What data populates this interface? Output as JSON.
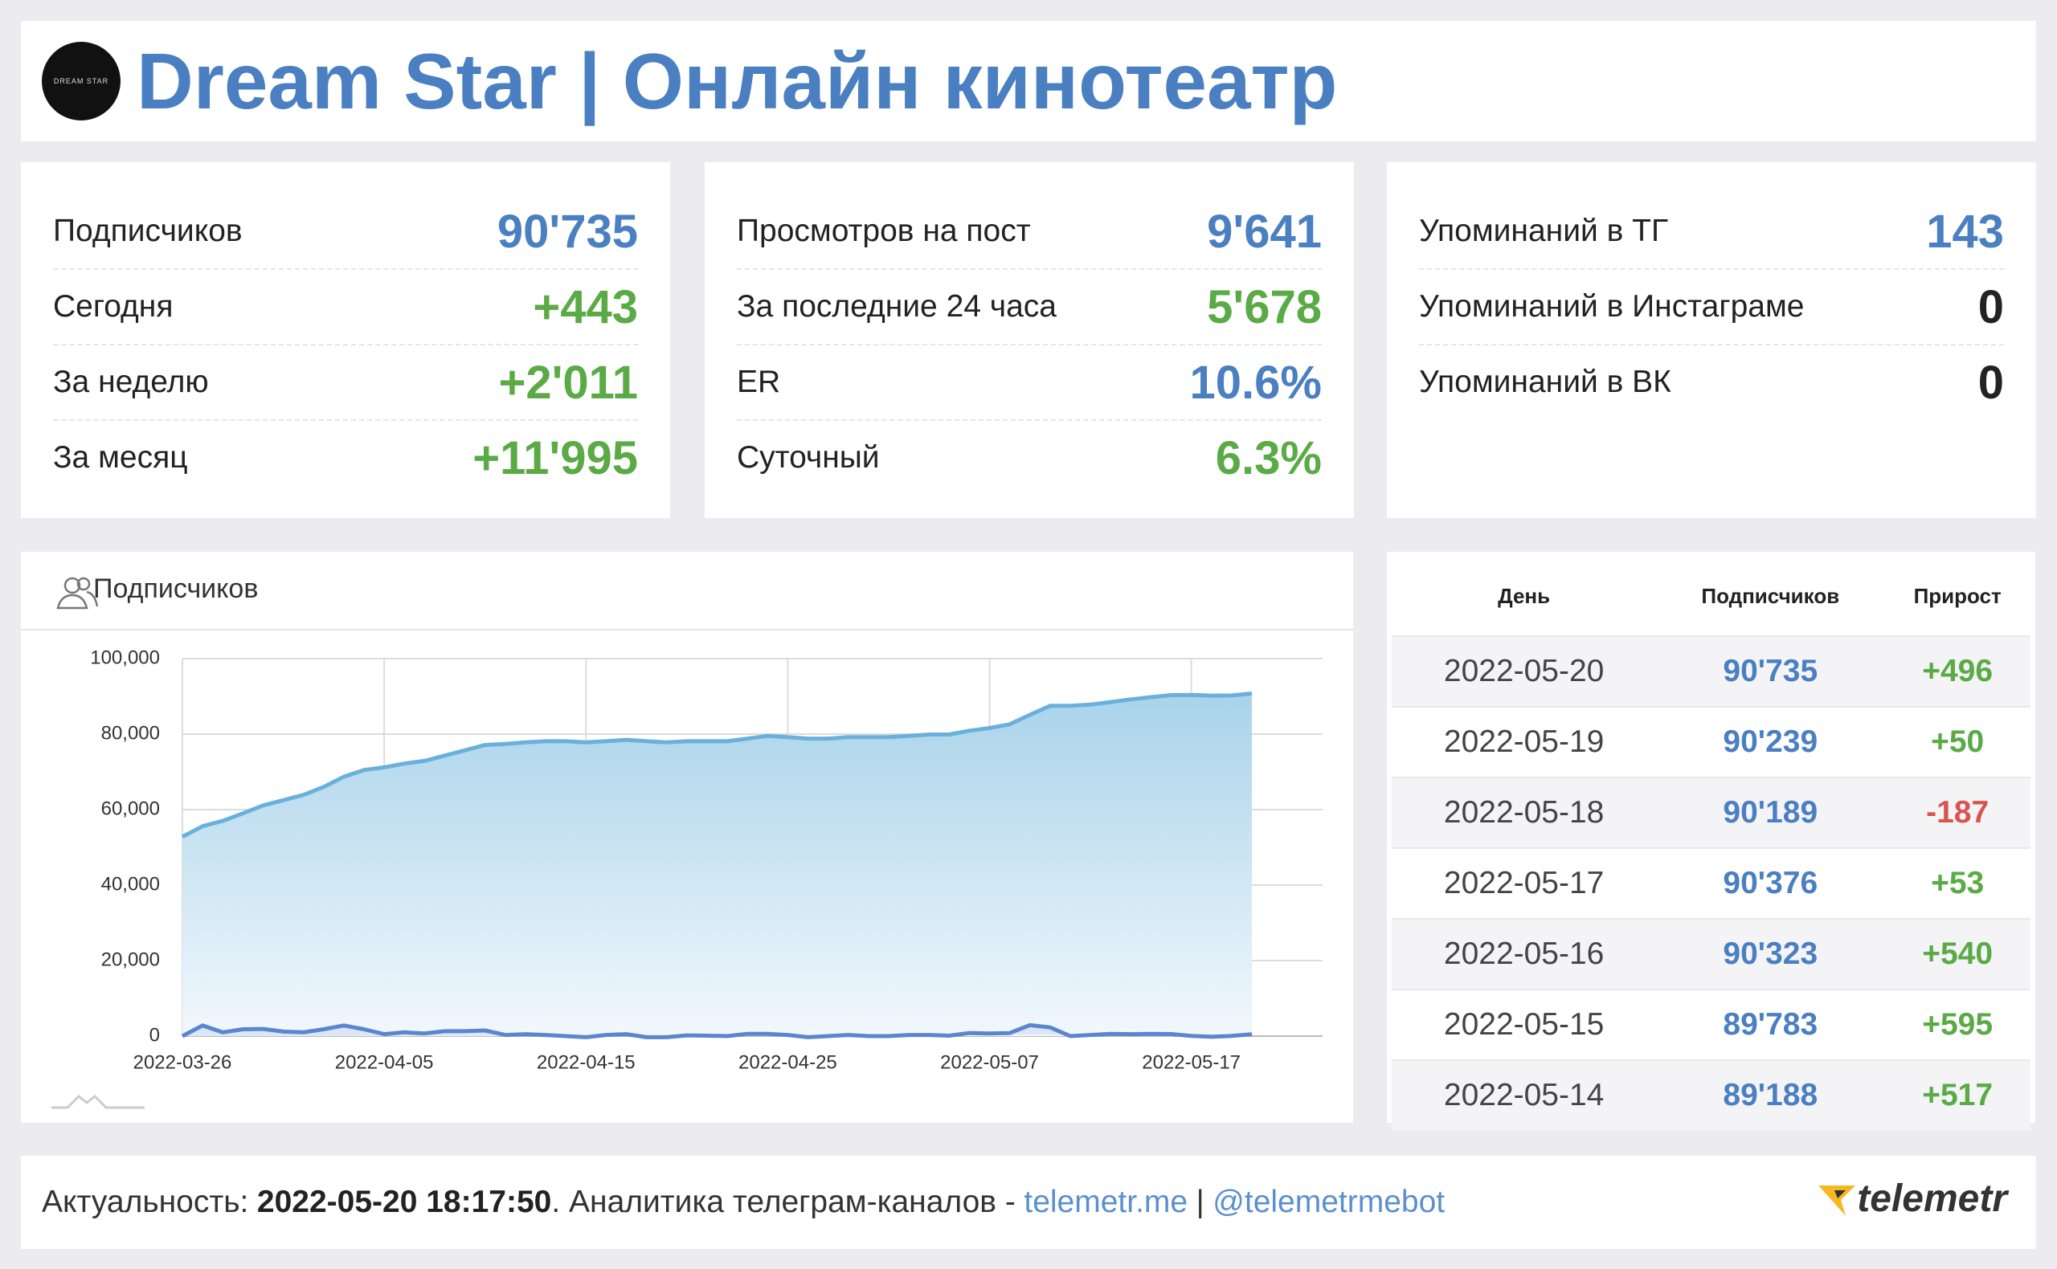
{
  "header": {
    "logo_text": "DREAM STAR",
    "title": "Dream Star | Онлайн кинотеатр"
  },
  "stats": [
    {
      "rows": [
        {
          "label": "Подписчиков",
          "value": "90'735"
        },
        {
          "label": "Сегодня",
          "value": "+443"
        },
        {
          "label": "За неделю",
          "value": "+2'011"
        },
        {
          "label": "За месяц",
          "value": "+11'995"
        }
      ]
    },
    {
      "rows": [
        {
          "label": "Просмотров на пост",
          "value": "9'641"
        },
        {
          "label": "За последние 24 часа",
          "value": "5'678"
        },
        {
          "label": "ER",
          "value": "10.6%"
        },
        {
          "label": "Суточный",
          "value": "6.3%"
        }
      ]
    },
    {
      "rows": [
        {
          "label": "Упоминаний в ТГ",
          "value": "143"
        },
        {
          "label": "Упоминаний в Инстаграме",
          "value": "0"
        },
        {
          "label": "Упоминаний в ВК",
          "value": "0"
        }
      ]
    }
  ],
  "chart_data": {
    "type": "line",
    "title": "Подписчиков",
    "categories": [
      "2022-03-26",
      null,
      null,
      null,
      null,
      null,
      null,
      null,
      null,
      null,
      "2022-04-05",
      null,
      null,
      null,
      null,
      null,
      null,
      null,
      null,
      null,
      "2022-04-15",
      null,
      null,
      null,
      null,
      null,
      null,
      null,
      null,
      null,
      "2022-04-25",
      null,
      null,
      null,
      null,
      null,
      null,
      null,
      null,
      null,
      "2022-05-07",
      null,
      null,
      null,
      null,
      null,
      null,
      null,
      null,
      null,
      "2022-05-17",
      null,
      null,
      null
    ],
    "series": [
      {
        "color": "#6ab0dc",
        "area": true,
        "values": [
          52800,
          55600,
          57000,
          59000,
          61100,
          62500,
          63900,
          66000,
          68700,
          70500,
          71200,
          72200,
          72900,
          74300,
          75700,
          77100,
          77400,
          77800,
          78100,
          78100,
          77800,
          78100,
          78500,
          78100,
          77800,
          78100,
          78100,
          78100,
          78800,
          79500,
          79200,
          78800,
          78800,
          79200,
          79200,
          79200,
          79500,
          79900,
          79900,
          80900,
          81600,
          82600,
          85100,
          87500,
          87500,
          87800,
          88500,
          89188,
          89783,
          90323,
          90376,
          90189,
          90239,
          90735
        ]
      },
      {
        "color": "#5b86cf",
        "area": false,
        "values": [
          0,
          2800,
          1000,
          1800,
          1900,
          1200,
          1000,
          1800,
          2800,
          1800,
          500,
          1000,
          700,
          1300,
          1300,
          1500,
          300,
          500,
          300,
          0,
          -300,
          300,
          500,
          -300,
          -300,
          200,
          100,
          0,
          600,
          600,
          300,
          -300,
          0,
          300,
          0,
          0,
          300,
          300,
          100,
          800,
          700,
          800,
          2900,
          2300,
          0,
          300,
          600,
          517,
          595,
          540,
          53,
          -187,
          50,
          496
        ]
      }
    ],
    "ylim": [
      0,
      100000
    ],
    "yticks": [
      0,
      {
        "value": 20000,
        "label": "20,000"
      },
      {
        "value": 40000,
        "label": "40,000"
      },
      {
        "value": 60000,
        "label": "60,000"
      },
      {
        "value": 80000,
        "label": "80,000"
      },
      {
        "value": 100000,
        "label": "100,000"
      }
    ],
    "grid": true
  },
  "table": {
    "columns": [
      "День",
      "Подписчиков",
      "Прирост"
    ],
    "rows": [
      [
        "2022-05-20",
        "90'735",
        "+496"
      ],
      [
        "2022-05-19",
        "90'239",
        "+50"
      ],
      [
        "2022-05-18",
        "90'189",
        "-187"
      ],
      [
        "2022-05-17",
        "90'376",
        "+53"
      ],
      [
        "2022-05-16",
        "90'323",
        "+540"
      ],
      [
        "2022-05-15",
        "89'783",
        "+595"
      ],
      [
        "2022-05-14",
        "89'188",
        "+517"
      ]
    ]
  },
  "footer": {
    "label": "Актуальность:",
    "timestamp": "2022-05-20 18:17:50",
    "text": ". Аналитика телеграм-каналов -",
    "link1": "telemetr.me",
    "separator": "|",
    "link2": "@telemetrmebot",
    "brand": "telemetr"
  }
}
